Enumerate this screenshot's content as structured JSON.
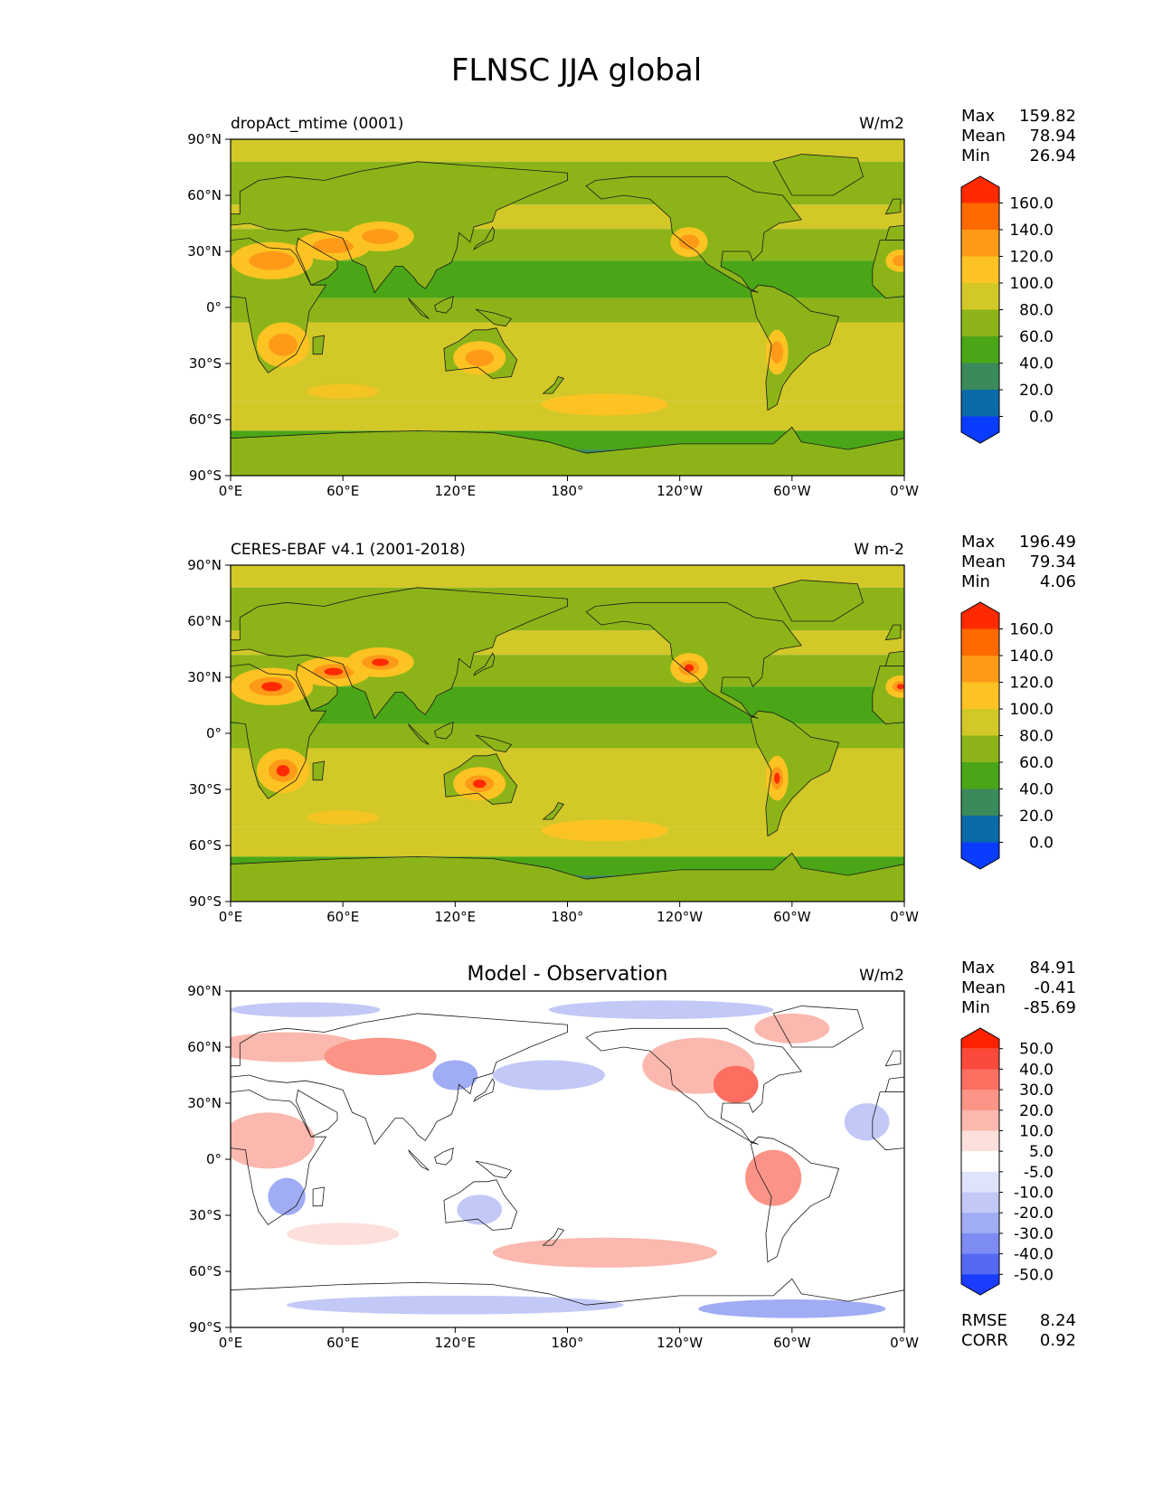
{
  "title": "FLNSC JJA global",
  "chart_data": [
    {
      "type": "heatmap",
      "left_label": "dropAct_mtime (0001)",
      "center_label": "",
      "right_label": "W/m2",
      "stats": [
        {
          "label": "Max",
          "value": "159.82"
        },
        {
          "label": "Mean",
          "value": "78.94"
        },
        {
          "label": "Min",
          "value": "26.94"
        }
      ],
      "colorbar_levels": [
        "160.0",
        "140.0",
        "120.0",
        "100.0",
        "80.0",
        "60.0",
        "40.0",
        "20.0",
        "0.0"
      ],
      "colorbar_colors": [
        "#ff2a00",
        "#ff6a00",
        "#ff9a18",
        "#fcc322",
        "#d2c828",
        "#8cb418",
        "#4aa616",
        "#3a8a5c",
        "#0b6aa8",
        "#0a3cff"
      ],
      "x_ticks": [
        "0°E",
        "60°E",
        "120°E",
        "180°",
        "120°W",
        "60°W",
        "0°W"
      ],
      "y_ticks": [
        "90°N",
        "60°N",
        "30°N",
        "0°",
        "30°S",
        "60°S",
        "90°S"
      ],
      "xlim": [
        0,
        360
      ],
      "ylim": [
        -90,
        90
      ],
      "colorbar_extend": "both"
    },
    {
      "type": "heatmap",
      "left_label": "CERES-EBAF v4.1 (2001-2018)",
      "center_label": "",
      "right_label": "W m-2",
      "stats": [
        {
          "label": "Max",
          "value": "196.49"
        },
        {
          "label": "Mean",
          "value": "79.34"
        },
        {
          "label": "Min",
          "value": "4.06"
        }
      ],
      "colorbar_levels": [
        "160.0",
        "140.0",
        "120.0",
        "100.0",
        "80.0",
        "60.0",
        "40.0",
        "20.0",
        "0.0"
      ],
      "colorbar_colors": [
        "#ff2a00",
        "#ff6a00",
        "#ff9a18",
        "#fcc322",
        "#d2c828",
        "#8cb418",
        "#4aa616",
        "#3a8a5c",
        "#0b6aa8",
        "#0a3cff"
      ],
      "x_ticks": [
        "0°E",
        "60°E",
        "120°E",
        "180°",
        "120°W",
        "60°W",
        "0°W"
      ],
      "y_ticks": [
        "90°N",
        "60°N",
        "30°N",
        "0°",
        "30°S",
        "60°S",
        "90°S"
      ],
      "xlim": [
        0,
        360
      ],
      "ylim": [
        -90,
        90
      ],
      "colorbar_extend": "both"
    },
    {
      "type": "heatmap",
      "left_label": "",
      "center_label": "Model - Observation",
      "right_label": "W/m2",
      "stats": [
        {
          "label": "Max",
          "value": "84.91"
        },
        {
          "label": "Mean",
          "value": "-0.41"
        },
        {
          "label": "Min",
          "value": "-85.69"
        }
      ],
      "colorbar_levels": [
        "50.0",
        "40.0",
        "30.0",
        "20.0",
        "10.0",
        "5.0",
        "-5.0",
        "-10.0",
        "-20.0",
        "-30.0",
        "-40.0",
        "-50.0"
      ],
      "colorbar_colors": [
        "#ff2200",
        "#fb4a3c",
        "#fb6e60",
        "#fb9486",
        "#fbb8ae",
        "#fde0dc",
        "#ffffff",
        "#dfe3fb",
        "#c2c9f7",
        "#a0acf4",
        "#7c8cf2",
        "#5568f4",
        "#1c3cff"
      ],
      "x_ticks": [
        "0°E",
        "60°E",
        "120°E",
        "180°",
        "120°W",
        "60°W",
        "0°W"
      ],
      "y_ticks": [
        "90°N",
        "60°N",
        "30°N",
        "0°",
        "30°S",
        "60°S",
        "90°S"
      ],
      "xlim": [
        0,
        360
      ],
      "ylim": [
        -90,
        90
      ],
      "colorbar_extend": "both",
      "extra_stats": [
        {
          "label": "RMSE",
          "value": "8.24"
        },
        {
          "label": "CORR",
          "value": "0.92"
        }
      ]
    }
  ]
}
